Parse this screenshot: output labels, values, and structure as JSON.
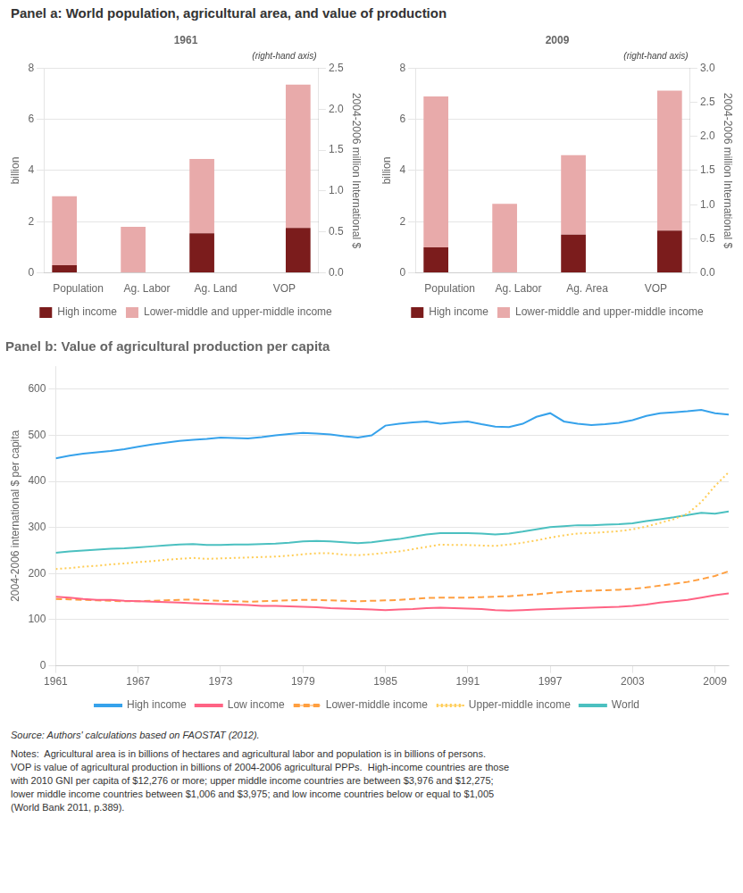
{
  "title": "Panel a: World population, agricultural area, and value of production",
  "annotations": [
    "Source: Authors' calculations based on FAOSTAT (2012).",
    "Notes:  Agricultural area is in billions of hectares and agricultural labor and population is in billions of persons.\nVOP is value of agricultural production in billions of 2004-2006 agricultural PPPs.  High-income countries are those\nwith 2010 GNI per capita of $12,276 or more; upper middle income countries are between $3,976 and $12,275;\nlower middle income countries between $1,006 and $3,975; and low income countries below or equal to $1,005\n(World Bank 2011, p.389)."
  ],
  "chart_data": [
    {
      "type": "bar",
      "title": "1961",
      "stacked": true,
      "grid": "y",
      "legend": "bottom",
      "categories": [
        "Population",
        "Ag. Labor",
        "Ag. Land",
        "VOP"
      ],
      "ylabel": "billion",
      "y2label": "2004-2006 million International $",
      "ylim": [
        0,
        8.0
      ],
      "yticks": [
        0,
        2,
        4,
        6,
        8
      ],
      "y2lim": [
        0,
        2.5
      ],
      "y2ticks": [
        {
          "value": 0,
          "label": "0.0"
        },
        0.5,
        {
          "value": 1,
          "label": "1.0"
        },
        1.5,
        {
          "value": 2,
          "label": "2.0"
        },
        2.5
      ],
      "annotations": [
        "(right-hand axis)"
      ],
      "series": [
        {
          "name": "High income",
          "color": "#7B1C1C",
          "values": [
            0.3,
            0.0,
            1.55,
            null
          ]
        },
        {
          "name": "Lower-middle and upper-middle income",
          "color": "#E8AAAA",
          "values": [
            2.7,
            1.8,
            2.9,
            null
          ]
        },
        {
          "name": "High income",
          "color": "#7B1C1C",
          "axis": "y2",
          "values": [
            null,
            null,
            null,
            0.55
          ]
        },
        {
          "name": "Lower-middle and upper-middle income",
          "color": "#E8AAAA",
          "axis": "y2",
          "values": [
            null,
            null,
            null,
            1.75
          ]
        }
      ]
    },
    {
      "type": "bar",
      "title": "2009",
      "stacked": true,
      "grid": "y",
      "legend": "bottom",
      "categories": [
        "Population",
        "Ag. Labor",
        "Ag. Area",
        "VOP"
      ],
      "ylabel": "billion",
      "y2label": "2004-2006 million International $",
      "ylim": [
        0,
        8.0
      ],
      "yticks": [
        0,
        2,
        4,
        6,
        8
      ],
      "y2lim": [
        0,
        3.0
      ],
      "y2ticks": [
        {
          "value": 0,
          "label": "0.0"
        },
        0.5,
        {
          "value": 1,
          "label": "1.0"
        },
        1.5,
        {
          "value": 2,
          "label": "2.0"
        },
        2.5,
        {
          "value": 3,
          "label": "3.0"
        }
      ],
      "annotations": [
        "(right-hand axis)"
      ],
      "series": [
        {
          "name": "High income",
          "color": "#7B1C1C",
          "values": [
            1.0,
            0.0,
            1.5,
            null
          ]
        },
        {
          "name": "Lower-middle and upper-middle income",
          "color": "#E8AAAA",
          "values": [
            5.9,
            2.7,
            3.1,
            null
          ]
        },
        {
          "name": "High income",
          "color": "#7B1C1C",
          "axis": "y2",
          "values": [
            null,
            null,
            null,
            0.62
          ]
        },
        {
          "name": "Lower-middle and upper-middle income",
          "color": "#E8AAAA",
          "axis": "y2",
          "values": [
            null,
            null,
            null,
            2.05
          ]
        }
      ]
    },
    {
      "type": "line",
      "title": "Panel b: Value of agricultural production per capita",
      "grid": "y",
      "legend": "bottom",
      "ylabel": "2004-2006 international $ per capita",
      "x": [
        1961,
        1962,
        1963,
        1964,
        1965,
        1966,
        1967,
        1968,
        1969,
        1970,
        1971,
        1972,
        1973,
        1974,
        1975,
        1976,
        1977,
        1978,
        1979,
        1980,
        1981,
        1982,
        1983,
        1984,
        1985,
        1986,
        1987,
        1988,
        1989,
        1990,
        1991,
        1992,
        1993,
        1994,
        1995,
        1996,
        1997,
        1998,
        1999,
        2000,
        2001,
        2002,
        2003,
        2004,
        2005,
        2006,
        2007,
        2008,
        2009,
        2010
      ],
      "xlim": [
        1961,
        2010
      ],
      "xticks": [
        1961,
        1967,
        1973,
        1979,
        1985,
        1991,
        1997,
        2003,
        2009
      ],
      "ylim": [
        0,
        650
      ],
      "yticks": [
        0,
        100,
        200,
        300,
        400,
        500,
        600
      ],
      "series": [
        {
          "name": "High income",
          "line_style": "solid",
          "values": [
            450,
            456,
            460,
            463,
            466,
            470,
            475,
            480,
            484,
            488,
            490,
            492,
            495,
            494,
            493,
            496,
            500,
            503,
            505,
            504,
            502,
            498,
            495,
            500,
            521,
            525,
            528,
            530,
            525,
            528,
            530,
            524,
            519,
            518,
            525,
            540,
            548,
            530,
            525,
            522,
            524,
            527,
            533,
            542,
            548,
            550,
            552,
            555,
            548,
            545
          ]
        },
        {
          "name": "Low income",
          "line_style": "solid",
          "values": [
            150,
            148,
            145,
            143,
            143,
            141,
            140,
            139,
            138,
            137,
            136,
            135,
            134,
            133,
            132,
            130,
            130,
            129,
            128,
            127,
            125,
            124,
            123,
            122,
            121,
            122,
            123,
            125,
            126,
            125,
            124,
            123,
            121,
            120,
            121,
            122,
            123,
            124,
            125,
            126,
            127,
            128,
            130,
            133,
            137,
            140,
            143,
            148,
            153,
            157
          ]
        },
        {
          "name": "Lower-middle income",
          "line_style": "dashed",
          "values": [
            145,
            144,
            143,
            142,
            141,
            140,
            140,
            141,
            142,
            143,
            144,
            142,
            141,
            140,
            139,
            140,
            141,
            142,
            143,
            143,
            142,
            141,
            140,
            141,
            142,
            143,
            145,
            147,
            148,
            148,
            148,
            149,
            150,
            151,
            153,
            155,
            158,
            160,
            162,
            163,
            164,
            165,
            167,
            170,
            174,
            178,
            182,
            188,
            195,
            205
          ]
        },
        {
          "name": "Upper-middle income",
          "line_style": "dotted",
          "values": [
            210,
            212,
            215,
            217,
            220,
            222,
            225,
            227,
            230,
            232,
            234,
            232,
            233,
            234,
            235,
            236,
            237,
            239,
            242,
            244,
            244,
            241,
            240,
            242,
            245,
            248,
            253,
            258,
            263,
            262,
            262,
            261,
            260,
            263,
            267,
            272,
            278,
            283,
            287,
            288,
            290,
            292,
            296,
            302,
            310,
            318,
            330,
            355,
            390,
            420
          ]
        },
        {
          "name": "World",
          "line_style": "solid",
          "values": [
            245,
            248,
            250,
            252,
            254,
            255,
            257,
            259,
            261,
            263,
            264,
            262,
            262,
            263,
            263,
            264,
            265,
            267,
            270,
            271,
            270,
            268,
            266,
            268,
            272,
            275,
            280,
            285,
            288,
            288,
            288,
            287,
            285,
            287,
            291,
            296,
            301,
            303,
            305,
            305,
            306,
            307,
            309,
            314,
            318,
            322,
            327,
            332,
            330,
            335
          ]
        }
      ]
    }
  ]
}
